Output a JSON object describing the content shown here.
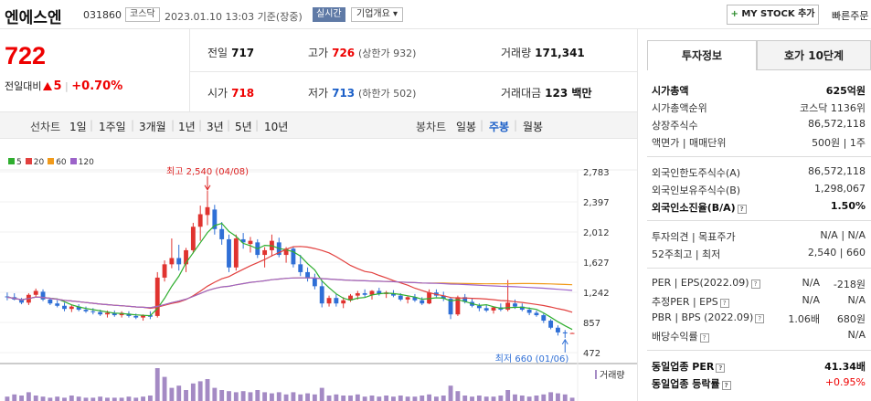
{
  "header": {
    "name": "엔에스엔",
    "code": "031860",
    "market": "코스닥",
    "datetime": "2023.01.10 13:03 기준(장중)",
    "realtime": "실시간",
    "overview": "기업개요 ▾",
    "mystock": "MY STOCK 추가",
    "quick_order": "빠른주문"
  },
  "quote": {
    "price": "722",
    "change_label": "전일대비",
    "change": "5",
    "change_pct": "+0.70%"
  },
  "stats": {
    "prev_label": "전일",
    "prev": "717",
    "high_label": "고가",
    "high": "726",
    "high_limit": "(상한가 932)",
    "volume_label": "거래량",
    "volume": "171,341",
    "open_label": "시가",
    "open": "718",
    "low_label": "저가",
    "low": "713",
    "low_limit": "(하한가 502)",
    "amount_label": "거래대금",
    "amount": "123 백만"
  },
  "tabs": {
    "line_label": "선차트",
    "line_periods": [
      "1일",
      "1주일",
      "3개월",
      "1년",
      "3년",
      "5년",
      "10년"
    ],
    "candle_label": "봉차트",
    "candle_periods": [
      "일봉",
      "주봉",
      "월봉"
    ],
    "selected": "주봉"
  },
  "chart_data": {
    "type": "candlestick",
    "period": "weekly",
    "legend": [
      {
        "name": "5",
        "color": "#2fae2f"
      },
      {
        "name": "20",
        "color": "#e2403e"
      },
      {
        "name": "60",
        "color": "#f19a1a"
      },
      {
        "name": "120",
        "color": "#9c63c9"
      }
    ],
    "y_ticks": [
      "2,783",
      "2,397",
      "2,012",
      "1,627",
      "1,242",
      "857",
      "472"
    ],
    "ylim": [
      472,
      2783
    ],
    "high_annotation": "최고 2,540 (04/08)",
    "low_annotation": "최저 660 (01/06)",
    "volume_label": "거래량",
    "candles": [
      [
        1190,
        1240,
        1140,
        1180
      ],
      [
        1180,
        1230,
        1140,
        1150
      ],
      [
        1150,
        1170,
        1090,
        1110
      ],
      [
        1110,
        1230,
        1080,
        1210
      ],
      [
        1210,
        1290,
        1180,
        1260
      ],
      [
        1250,
        1280,
        1130,
        1150
      ],
      [
        1150,
        1170,
        1080,
        1100
      ],
      [
        1100,
        1140,
        1050,
        1070
      ],
      [
        1070,
        1110,
        1000,
        1030
      ],
      [
        1030,
        1080,
        990,
        1060
      ],
      [
        1060,
        1090,
        1000,
        1020
      ],
      [
        1020,
        1060,
        980,
        1000
      ],
      [
        1000,
        1040,
        960,
        990
      ],
      [
        990,
        1020,
        940,
        960
      ],
      [
        960,
        1010,
        920,
        980
      ],
      [
        980,
        1010,
        930,
        950
      ],
      [
        950,
        1000,
        920,
        980
      ],
      [
        970,
        1000,
        920,
        940
      ],
      [
        940,
        970,
        900,
        920
      ],
      [
        920,
        960,
        880,
        950
      ],
      [
        950,
        1000,
        900,
        930
      ],
      [
        940,
        1500,
        920,
        1430
      ],
      [
        1430,
        1650,
        1380,
        1600
      ],
      [
        1600,
        1930,
        1550,
        1680
      ],
      [
        1680,
        1850,
        1520,
        1600
      ],
      [
        1600,
        1810,
        1500,
        1780
      ],
      [
        1780,
        2130,
        1740,
        2080
      ],
      [
        2080,
        2350,
        1900,
        2240
      ],
      [
        2230,
        2540,
        2100,
        2330
      ],
      [
        2300,
        2360,
        1980,
        2050
      ],
      [
        2050,
        2140,
        1850,
        1920
      ],
      [
        1920,
        1980,
        1500,
        1560
      ],
      [
        1560,
        1980,
        1520,
        1930
      ],
      [
        1920,
        2000,
        1800,
        1880
      ],
      [
        1860,
        1950,
        1750,
        1900
      ],
      [
        1880,
        1920,
        1680,
        1720
      ],
      [
        1720,
        1820,
        1560,
        1780
      ],
      [
        1780,
        1980,
        1700,
        1900
      ],
      [
        1880,
        1940,
        1690,
        1720
      ],
      [
        1720,
        1820,
        1620,
        1800
      ],
      [
        1800,
        1820,
        1560,
        1600
      ],
      [
        1600,
        1720,
        1450,
        1500
      ],
      [
        1500,
        1560,
        1380,
        1420
      ],
      [
        1420,
        1480,
        1280,
        1320
      ],
      [
        1320,
        1400,
        1050,
        1100
      ],
      [
        1100,
        1200,
        1060,
        1170
      ],
      [
        1170,
        1220,
        1060,
        1100
      ],
      [
        1100,
        1180,
        1040,
        1140
      ],
      [
        1140,
        1220,
        1120,
        1200
      ],
      [
        1200,
        1260,
        1150,
        1230
      ],
      [
        1230,
        1280,
        1180,
        1210
      ],
      [
        1210,
        1270,
        1150,
        1260
      ],
      [
        1260,
        1300,
        1200,
        1220
      ],
      [
        1220,
        1260,
        1170,
        1240
      ],
      [
        1230,
        1270,
        1180,
        1200
      ],
      [
        1200,
        1230,
        1130,
        1150
      ],
      [
        1150,
        1200,
        1100,
        1180
      ],
      [
        1180,
        1220,
        1120,
        1140
      ],
      [
        1140,
        1180,
        1080,
        1100
      ],
      [
        1100,
        1280,
        1090,
        1240
      ],
      [
        1240,
        1280,
        1180,
        1200
      ],
      [
        1200,
        1250,
        1130,
        1160
      ],
      [
        1160,
        1180,
        900,
        960
      ],
      [
        960,
        1200,
        940,
        1180
      ],
      [
        1180,
        1220,
        1100,
        1120
      ],
      [
        1120,
        1160,
        1050,
        1070
      ],
      [
        1070,
        1100,
        1000,
        1040
      ],
      [
        1040,
        1080,
        990,
        1010
      ],
      [
        1010,
        1060,
        970,
        1050
      ],
      [
        1050,
        1100,
        1000,
        1020
      ],
      [
        1020,
        1400,
        1000,
        1110
      ],
      [
        1100,
        1150,
        1030,
        1060
      ],
      [
        1060,
        1100,
        1000,
        1020
      ],
      [
        1020,
        1050,
        950,
        980
      ],
      [
        980,
        1010,
        930,
        950
      ],
      [
        950,
        970,
        850,
        880
      ],
      [
        880,
        900,
        770,
        790
      ],
      [
        790,
        820,
        690,
        730
      ],
      [
        730,
        760,
        660,
        717
      ],
      [
        718,
        726,
        713,
        722
      ]
    ],
    "volumes": [
      4,
      6,
      5,
      8,
      5,
      4,
      3,
      4,
      3,
      5,
      4,
      3,
      3,
      4,
      3,
      3,
      3,
      4,
      3,
      4,
      5,
      30,
      22,
      12,
      14,
      10,
      16,
      18,
      20,
      12,
      10,
      9,
      8,
      9,
      8,
      10,
      8,
      7,
      8,
      6,
      8,
      6,
      7,
      6,
      12,
      5,
      6,
      5,
      5,
      6,
      4,
      5,
      4,
      5,
      4,
      5,
      4,
      4,
      5,
      6,
      4,
      5,
      14,
      9,
      5,
      4,
      5,
      4,
      4,
      5,
      10,
      6,
      5,
      4,
      5,
      6,
      8,
      7,
      6,
      3
    ]
  },
  "right_panel": {
    "tab_info": "투자정보",
    "tab_orderbook": "호가 10단계",
    "market_cap_label": "시가총액",
    "market_cap": "625억원",
    "rank_label": "시가총액순위",
    "rank": "코스닥 1136위",
    "shares_label": "상장주식수",
    "shares": "86,572,118",
    "par_label": "액면가 | 매매단위",
    "par": "500원 | 1주",
    "foreign_limit_label": "외국인한도주식수(A)",
    "foreign_limit": "86,572,118",
    "foreign_hold_label": "외국인보유주식수(B)",
    "foreign_hold": "1,298,067",
    "foreign_ratio_label": "외국인소진율(B/A)",
    "foreign_ratio": "1.50%",
    "opinion_label": "투자의견 | 목표주가",
    "opinion": "N/A | N/A",
    "week52_label": "52주최고 | 최저",
    "week52": "2,540 | 660",
    "per_label": "PER | EPS(2022.09)",
    "per": "N/A",
    "eps": "-218원",
    "est_per_label": "추정PER | EPS",
    "est_per": "N/A",
    "est_eps": "N/A",
    "pbr_label": "PBR | BPS (2022.09)",
    "pbr": "1.06배",
    "bps": "680원",
    "dividend_label": "배당수익률",
    "dividend": "N/A",
    "industry_per_label": "동일업종 PER",
    "industry_per": "41.34배",
    "industry_rate_label": "동일업종 등락률",
    "industry_rate": "+0.95%"
  }
}
